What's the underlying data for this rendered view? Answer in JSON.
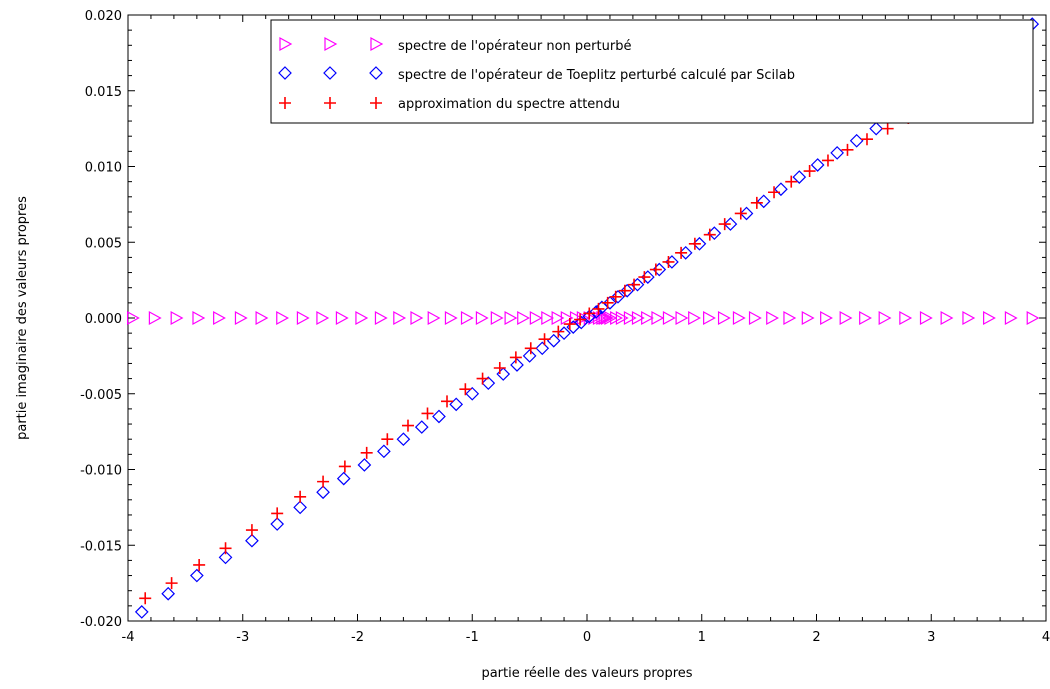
{
  "chart_data": {
    "type": "scatter",
    "xlabel": "partie réelle des valeurs propres",
    "ylabel": "partie imaginaire des valeurs propres",
    "xlim": [
      -4,
      4
    ],
    "ylim": [
      -0.02,
      0.02
    ],
    "xticks": [
      -4,
      -3,
      -2,
      -1,
      0,
      1,
      2,
      3,
      4
    ],
    "xtick_labels": [
      "-4",
      "-3",
      "-2",
      "-1",
      "0",
      "1",
      "2",
      "3",
      "4"
    ],
    "yticks": [
      -0.02,
      -0.015,
      -0.01,
      -0.005,
      0,
      0.005,
      0.01,
      0.015,
      0.02
    ],
    "ytick_labels": [
      "-0.020",
      "-0.015",
      "-0.010",
      "-0.005",
      "0.000",
      "0.005",
      "0.010",
      "0.015",
      "0.020"
    ],
    "grid": false,
    "legend_position": "top-right",
    "series": [
      {
        "name": "spectre de l'opérateur non perturbé",
        "marker": "triangle-right",
        "color": "#ff00ff",
        "x": [
          -3.96,
          -3.77,
          -3.58,
          -3.39,
          -3.21,
          -3.02,
          -2.84,
          -2.66,
          -2.48,
          -2.31,
          -2.14,
          -1.97,
          -1.8,
          -1.64,
          -1.49,
          -1.34,
          -1.19,
          -1.05,
          -0.92,
          -0.79,
          -0.67,
          -0.56,
          -0.45,
          -0.35,
          -0.26,
          -0.18,
          -0.1,
          -0.04,
          0.02,
          0.06,
          0.1,
          0.13,
          0.15,
          0.17,
          0.2,
          0.25,
          0.3,
          0.37,
          0.44,
          0.52,
          0.61,
          0.71,
          0.82,
          0.93,
          1.06,
          1.19,
          1.32,
          1.46,
          1.61,
          1.76,
          1.92,
          2.08,
          2.25,
          2.42,
          2.59,
          2.77,
          2.95,
          3.13,
          3.32,
          3.5,
          3.69,
          3.88
        ],
        "y": [
          0,
          0,
          0,
          0,
          0,
          0,
          0,
          0,
          0,
          0,
          0,
          0,
          0,
          0,
          0,
          0,
          0,
          0,
          0,
          0,
          0,
          0,
          0,
          0,
          0,
          0,
          0,
          0,
          0,
          0,
          0,
          0,
          0,
          0,
          0,
          0,
          0,
          0,
          0,
          0,
          0,
          0,
          0,
          0,
          0,
          0,
          0,
          0,
          0,
          0,
          0,
          0,
          0,
          0,
          0,
          0,
          0,
          0,
          0,
          0,
          0,
          0
        ]
      },
      {
        "name": "spectre de l'opérateur de Toeplitz perturbé calculé par Scilab",
        "marker": "diamond",
        "color": "#0000ff",
        "x": [
          -3.88,
          -3.65,
          -3.4,
          -3.15,
          -2.92,
          -2.7,
          -2.5,
          -2.3,
          -2.12,
          -1.94,
          -1.77,
          -1.6,
          -1.44,
          -1.29,
          -1.14,
          -1.0,
          -0.86,
          -0.73,
          -0.61,
          -0.5,
          -0.39,
          -0.29,
          -0.2,
          -0.12,
          -0.05,
          0.02,
          0.08,
          0.13,
          0.2,
          0.27,
          0.35,
          0.44,
          0.53,
          0.63,
          0.74,
          0.86,
          0.98,
          1.11,
          1.25,
          1.39,
          1.54,
          1.69,
          1.85,
          2.01,
          2.18,
          2.35,
          2.52,
          3.88
        ],
        "y": [
          -0.0194,
          -0.0182,
          -0.017,
          -0.0158,
          -0.0147,
          -0.0136,
          -0.0125,
          -0.0115,
          -0.0106,
          -0.0097,
          -0.0088,
          -0.008,
          -0.0072,
          -0.0065,
          -0.0057,
          -0.005,
          -0.0043,
          -0.0037,
          -0.0031,
          -0.0025,
          -0.002,
          -0.0015,
          -0.001,
          -0.0006,
          -0.0003,
          0.0001,
          0.0004,
          0.0007,
          0.001,
          0.0014,
          0.0018,
          0.0022,
          0.0027,
          0.0032,
          0.0037,
          0.0043,
          0.0049,
          0.0056,
          0.0062,
          0.0069,
          0.0077,
          0.0085,
          0.0093,
          0.0101,
          0.0109,
          0.0117,
          0.0125,
          0.0194
        ]
      },
      {
        "name": "approximation du spectre attendu",
        "marker": "plus",
        "color": "#ff0000",
        "x": [
          -3.85,
          -3.62,
          -3.38,
          -3.15,
          -2.92,
          -2.7,
          -2.5,
          -2.3,
          -2.11,
          -1.92,
          -1.74,
          -1.56,
          -1.39,
          -1.22,
          -1.06,
          -0.91,
          -0.76,
          -0.62,
          -0.49,
          -0.37,
          -0.25,
          -0.15,
          -0.06,
          0.02,
          0.1,
          0.18,
          0.25,
          0.33,
          0.41,
          0.5,
          0.6,
          0.71,
          0.82,
          0.94,
          1.07,
          1.2,
          1.34,
          1.48,
          1.63,
          1.78,
          1.94,
          2.1,
          2.27,
          2.44,
          2.62,
          2.8
        ],
        "y": [
          -0.0185,
          -0.0175,
          -0.0163,
          -0.0152,
          -0.014,
          -0.0129,
          -0.0118,
          -0.0108,
          -0.0098,
          -0.0089,
          -0.008,
          -0.0071,
          -0.0063,
          -0.0055,
          -0.0047,
          -0.004,
          -0.0033,
          -0.0026,
          -0.002,
          -0.0014,
          -0.0009,
          -0.0004,
          -0.0001,
          0.0003,
          0.0006,
          0.001,
          0.0014,
          0.0018,
          0.0022,
          0.0027,
          0.0032,
          0.0037,
          0.0043,
          0.0049,
          0.0055,
          0.0062,
          0.0069,
          0.0076,
          0.0083,
          0.009,
          0.0097,
          0.0104,
          0.0111,
          0.0118,
          0.0125,
          0.0132
        ]
      }
    ]
  }
}
